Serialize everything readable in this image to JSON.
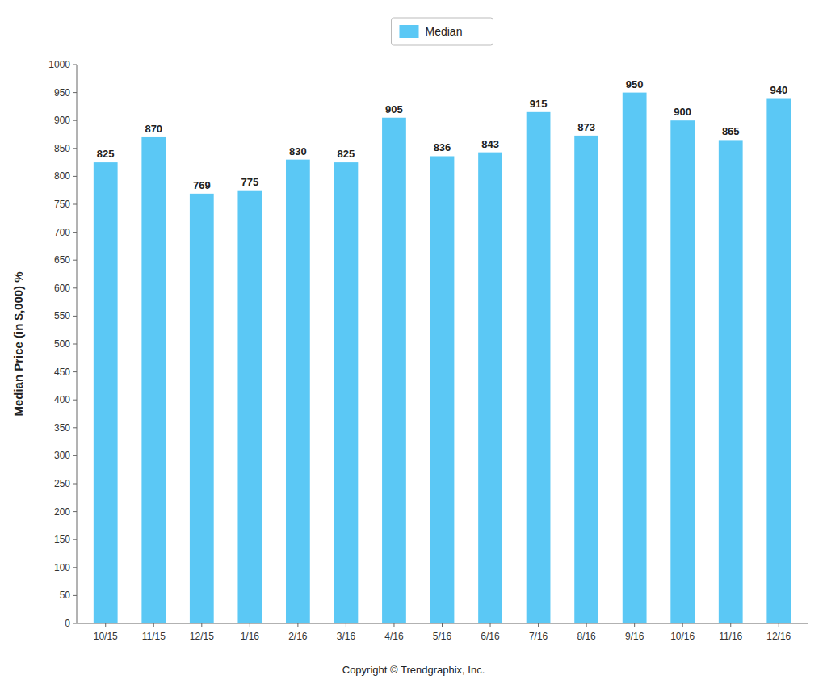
{
  "chart_data": {
    "type": "bar",
    "ylabel": "Median Price (in $,000) %",
    "categories": [
      "10/15",
      "11/15",
      "12/15",
      "1/16",
      "2/16",
      "3/16",
      "4/16",
      "5/16",
      "6/16",
      "7/16",
      "8/16",
      "9/16",
      "10/16",
      "11/16",
      "12/16"
    ],
    "series": [
      {
        "name": "Median",
        "color": "#5BC8F5",
        "values": [
          825,
          870,
          769,
          775,
          830,
          825,
          905,
          836,
          843,
          915,
          873,
          950,
          900,
          865,
          940
        ]
      }
    ],
    "ylim": [
      0,
      1000
    ],
    "yticks": [
      0,
      50,
      100,
      150,
      200,
      250,
      300,
      350,
      400,
      450,
      500,
      550,
      600,
      650,
      700,
      750,
      800,
      850,
      900,
      950,
      1000
    ],
    "grid": false,
    "legend": "upper center",
    "data_labels": true,
    "annotations": [
      "Copyright © Trendgraphix, Inc."
    ]
  }
}
